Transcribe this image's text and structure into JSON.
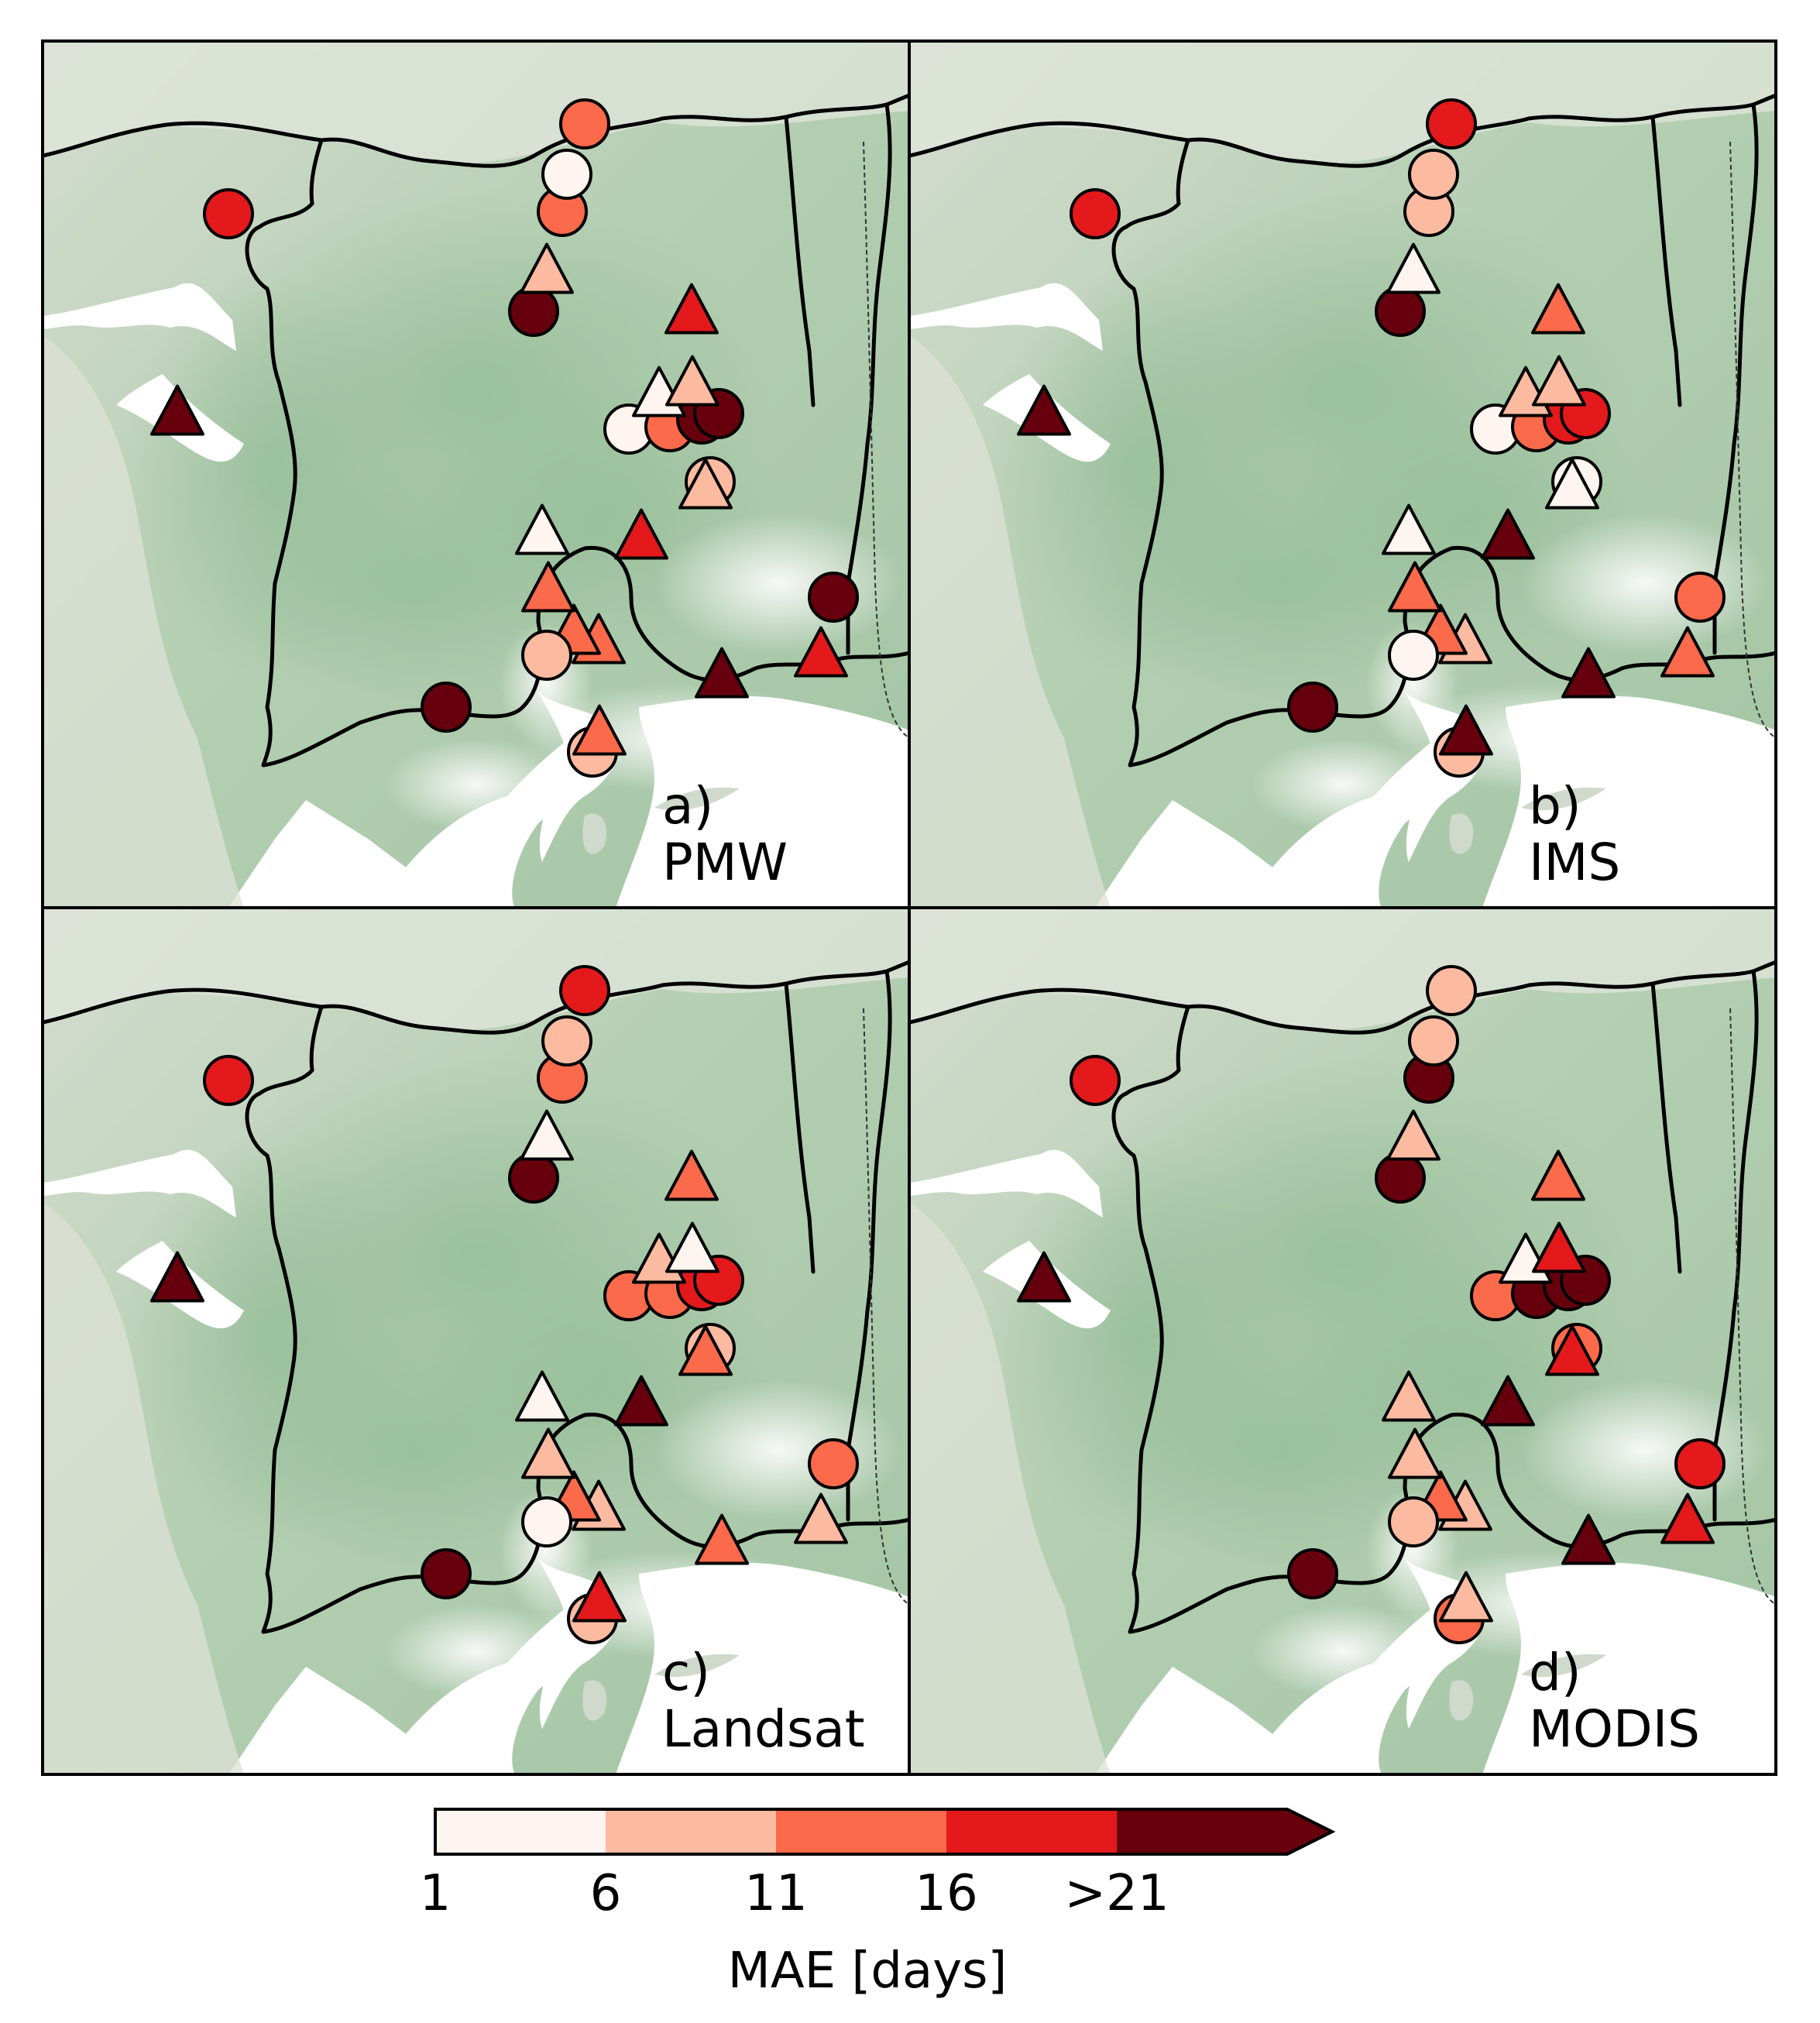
{
  "panels": [
    {
      "letter": "a)",
      "name": "PMW"
    },
    {
      "letter": "b)",
      "name": "IMS"
    },
    {
      "letter": "c)",
      "name": "Landsat"
    },
    {
      "letter": "d)",
      "name": "MODIS"
    }
  ],
  "colorbar": {
    "title": "MAE [days]",
    "tick_labels": [
      "1",
      "6",
      "11",
      "16",
      ">21"
    ],
    "bins": [
      {
        "from": 1,
        "to": 6,
        "color": "#fff5f0"
      },
      {
        "from": 6,
        "to": 11,
        "color": "#fcbba1"
      },
      {
        "from": 11,
        "to": 16,
        "color": "#fb6a4a"
      },
      {
        "from": 16,
        "to": 21,
        "color": "#e3191c"
      },
      {
        "from": 21,
        "to": null,
        "color": "#67000d"
      }
    ],
    "extend": "max"
  },
  "colors": {
    "land": "#d3dccb",
    "land_lowland": "#a9c9a8",
    "mountains": "#eef1ee",
    "water": "#ffffff",
    "border": "#000000",
    "marker_edge": "#000000"
  },
  "marker_shapes": {
    "circle": "circle",
    "triangle": "triangle"
  },
  "station_values": {
    "PMW": {
      "c1": 12,
      "c2": 2,
      "c3": 12,
      "t1": 8,
      "c4": 23,
      "c5": 18,
      "t2": 18,
      "t3": 23,
      "t4": 8,
      "t5": 3,
      "c6": 3,
      "c7": 12,
      "c8": 22,
      "c9": 22,
      "c10": 9,
      "t6": 9,
      "t7": 18,
      "t8": 3,
      "t9": 12,
      "c11": 8,
      "t10": 12,
      "t11": 12,
      "c12": 23,
      "t12": 23,
      "c13": 23,
      "t13": 18,
      "t14": 12,
      "c15": 8
    },
    "IMS": {
      "c1": 18,
      "c2": 8,
      "c3": 8,
      "t1": 2,
      "c4": 23,
      "c5": 18,
      "t2": 12,
      "t3": 23,
      "t4": 8,
      "t5": 9,
      "c6": 3,
      "c7": 12,
      "c8": 18,
      "c9": 18,
      "c10": 3,
      "t6": 3,
      "t7": 23,
      "t8": 3,
      "t9": 12,
      "c11": 3,
      "t10": 12,
      "t11": 9,
      "c12": 23,
      "t12": 23,
      "c13": 12,
      "t13": 12,
      "t14": 23,
      "c15": 8
    },
    "Landsat": {
      "c1": 18,
      "c2": 8,
      "c3": 12,
      "t1": 3,
      "c4": 23,
      "c5": 18,
      "t2": 12,
      "t3": 23,
      "t4": 3,
      "t5": 8,
      "c6": 12,
      "c7": 12,
      "c8": 18,
      "c9": 18,
      "c10": 9,
      "t6": 12,
      "t7": 23,
      "t8": 3,
      "t9": 8,
      "c11": 3,
      "t10": 12,
      "t11": 9,
      "c12": 23,
      "t12": 12,
      "c13": 12,
      "t13": 8,
      "t14": 18,
      "c15": 8
    },
    "MODIS": {
      "c1": 8,
      "c2": 8,
      "c3": 23,
      "t1": 8,
      "c4": 23,
      "c5": 18,
      "t2": 12,
      "t3": 23,
      "t4": 18,
      "t5": 3,
      "c6": 12,
      "c7": 23,
      "c8": 23,
      "c9": 23,
      "c10": 12,
      "t6": 18,
      "t7": 23,
      "t8": 8,
      "t9": 8,
      "c11": 8,
      "t10": 12,
      "t11": 9,
      "c12": 23,
      "t12": 23,
      "c13": 18,
      "t13": 18,
      "t14": 8,
      "c15": 12
    }
  }
}
